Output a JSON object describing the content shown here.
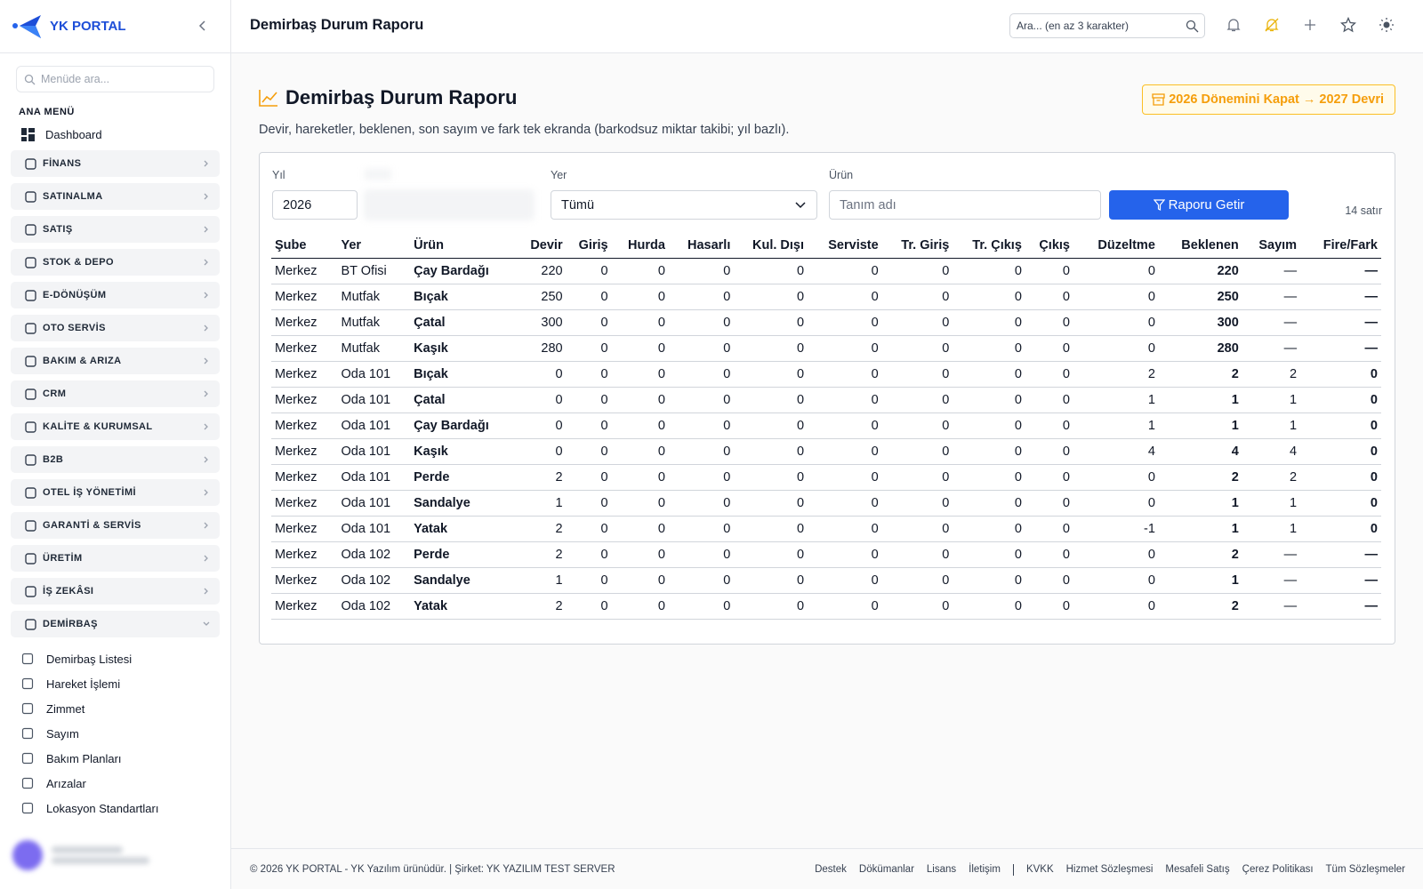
{
  "sidebar": {
    "brand": "YK PORTAL",
    "search_placeholder": "Menüde ara...",
    "section": "ANA MENÜ",
    "dashboard": "Dashboard",
    "groups": [
      "FİNANS",
      "SATINALMA",
      "SATIŞ",
      "STOK & DEPO",
      "E-DÖNÜŞÜM",
      "OTO SERVİS",
      "BAKIM & ARIZA",
      "CRM",
      "KALİTE & KURUMSAL",
      "B2B",
      "OTEL İŞ YÖNETİMİ",
      "GARANTİ & SERVİS",
      "ÜRETİM",
      "İŞ ZEKÂSI",
      "DEMİRBAŞ"
    ],
    "submenu": [
      "Demirbaş Listesi",
      "Hareket İşlemi",
      "Zimmet",
      "Sayım",
      "Bakım Planları",
      "Arızalar",
      "Lokasyon Standartları"
    ]
  },
  "header": {
    "title": "Demirbaş Durum Raporu",
    "search_placeholder": "Ara... (en az 3 karakter)"
  },
  "page": {
    "title": "Demirbaş Durum Raporu",
    "action": "2026 Dönemini Kapat → 2027 Devri",
    "description": "Devir, hareketler, beklenen, son sayım ve fark tek ekranda (barkodsuz miktar takibi; yıl bazlı)."
  },
  "filters": {
    "year_label": "Yıl",
    "year_value": "2026",
    "place_label": "Yer",
    "place_value": "Tümü",
    "product_label": "Ürün",
    "product_placeholder": "Tanım adı",
    "button": "Raporu Getir",
    "row_count": "14 satır"
  },
  "table": {
    "columns": [
      "Şube",
      "Yer",
      "Ürün",
      "Devir",
      "Giriş",
      "Hurda",
      "Hasarlı",
      "Kul. Dışı",
      "Serviste",
      "Tr. Giriş",
      "Tr. Çıkış",
      "Çıkış",
      "Düzeltme",
      "Beklenen",
      "Sayım",
      "Fire/Fark"
    ],
    "rows": [
      [
        "Merkez",
        "BT Ofisi",
        "Çay Bardağı",
        220,
        0,
        0,
        0,
        0,
        0,
        0,
        0,
        0,
        0,
        220,
        "—",
        "—"
      ],
      [
        "Merkez",
        "Mutfak",
        "Bıçak",
        250,
        0,
        0,
        0,
        0,
        0,
        0,
        0,
        0,
        0,
        250,
        "—",
        "—"
      ],
      [
        "Merkez",
        "Mutfak",
        "Çatal",
        300,
        0,
        0,
        0,
        0,
        0,
        0,
        0,
        0,
        0,
        300,
        "—",
        "—"
      ],
      [
        "Merkez",
        "Mutfak",
        "Kaşık",
        280,
        0,
        0,
        0,
        0,
        0,
        0,
        0,
        0,
        0,
        280,
        "—",
        "—"
      ],
      [
        "Merkez",
        "Oda 101",
        "Bıçak",
        0,
        0,
        0,
        0,
        0,
        0,
        0,
        0,
        0,
        2,
        2,
        2,
        0
      ],
      [
        "Merkez",
        "Oda 101",
        "Çatal",
        0,
        0,
        0,
        0,
        0,
        0,
        0,
        0,
        0,
        1,
        1,
        1,
        0
      ],
      [
        "Merkez",
        "Oda 101",
        "Çay Bardağı",
        0,
        0,
        0,
        0,
        0,
        0,
        0,
        0,
        0,
        1,
        1,
        1,
        0
      ],
      [
        "Merkez",
        "Oda 101",
        "Kaşık",
        0,
        0,
        0,
        0,
        0,
        0,
        0,
        0,
        0,
        4,
        4,
        4,
        0
      ],
      [
        "Merkez",
        "Oda 101",
        "Perde",
        2,
        0,
        0,
        0,
        0,
        0,
        0,
        0,
        0,
        0,
        2,
        2,
        0
      ],
      [
        "Merkez",
        "Oda 101",
        "Sandalye",
        1,
        0,
        0,
        0,
        0,
        0,
        0,
        0,
        0,
        0,
        1,
        1,
        0
      ],
      [
        "Merkez",
        "Oda 101",
        "Yatak",
        2,
        0,
        0,
        0,
        0,
        0,
        0,
        0,
        0,
        -1,
        1,
        1,
        0
      ],
      [
        "Merkez",
        "Oda 102",
        "Perde",
        2,
        0,
        0,
        0,
        0,
        0,
        0,
        0,
        0,
        0,
        2,
        "—",
        "—"
      ],
      [
        "Merkez",
        "Oda 102",
        "Sandalye",
        1,
        0,
        0,
        0,
        0,
        0,
        0,
        0,
        0,
        0,
        1,
        "—",
        "—"
      ],
      [
        "Merkez",
        "Oda 102",
        "Yatak",
        2,
        0,
        0,
        0,
        0,
        0,
        0,
        0,
        0,
        0,
        2,
        "—",
        "—"
      ]
    ]
  },
  "footer": {
    "copyright": "© 2026 YK PORTAL - YK Yazılım ürünüdür. | Şirket: YK YAZILIM TEST SERVER",
    "links": [
      "Destek",
      "Dökümanlar",
      "Lisans",
      "İletişim"
    ],
    "legal_links": [
      "KVKK",
      "Hizmet Sözleşmesi",
      "Mesafeli Satış",
      "Çerez Politikası",
      "Tüm Sözleşmeler"
    ]
  }
}
